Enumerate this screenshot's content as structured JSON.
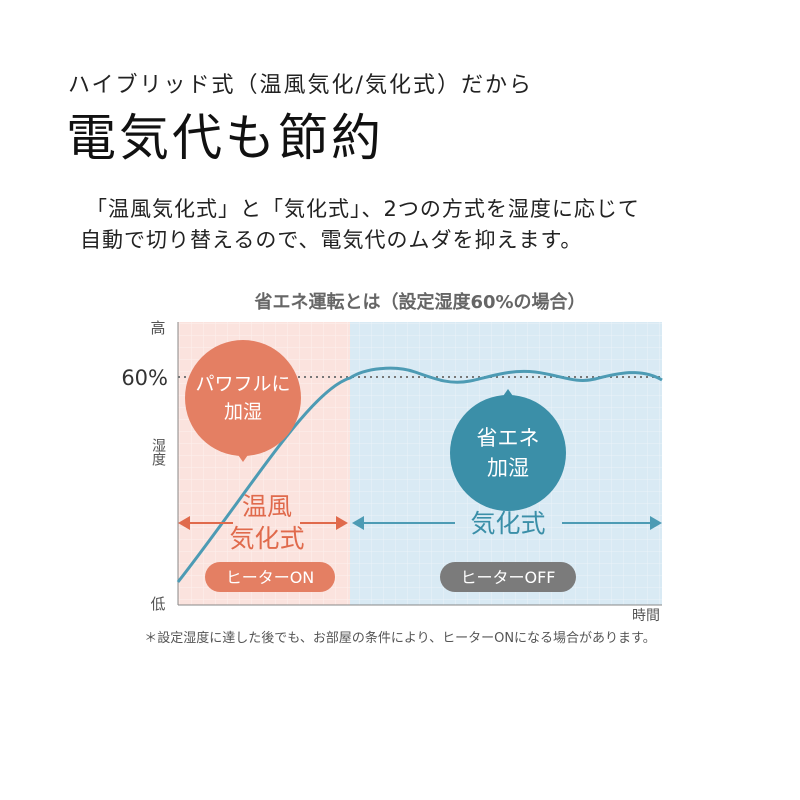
{
  "header": {
    "subtitle": "ハイブリッド式（温風気化/気化式）だから",
    "title": "電気代も節約"
  },
  "body": {
    "lines": [
      "「温風気化式」と「気化式」、2つの方式を湿度に応じて",
      "自動で切り替えるので、電気代のムダを抑えます。"
    ]
  },
  "diagram": {
    "title": "省エネ運転とは（設定湿度60%の場合）",
    "y_axis": {
      "high": "高",
      "target": "60%",
      "label": "湿度",
      "low": "低"
    },
    "x_axis": {
      "label": "時間"
    },
    "bubbles": [
      {
        "lines": [
          "パワフルに",
          "加湿"
        ]
      },
      {
        "lines": [
          "省エネ",
          "加湿"
        ]
      }
    ],
    "modes": [
      {
        "lines": [
          "温風",
          "気化式"
        ],
        "state": "ヒーターON"
      },
      {
        "lines": [
          "気化式"
        ],
        "state": "ヒーターOFF"
      }
    ]
  },
  "note": "＊設定湿度に達した後でも、お部屋の条件により、ヒーターONになる場合があります。"
}
